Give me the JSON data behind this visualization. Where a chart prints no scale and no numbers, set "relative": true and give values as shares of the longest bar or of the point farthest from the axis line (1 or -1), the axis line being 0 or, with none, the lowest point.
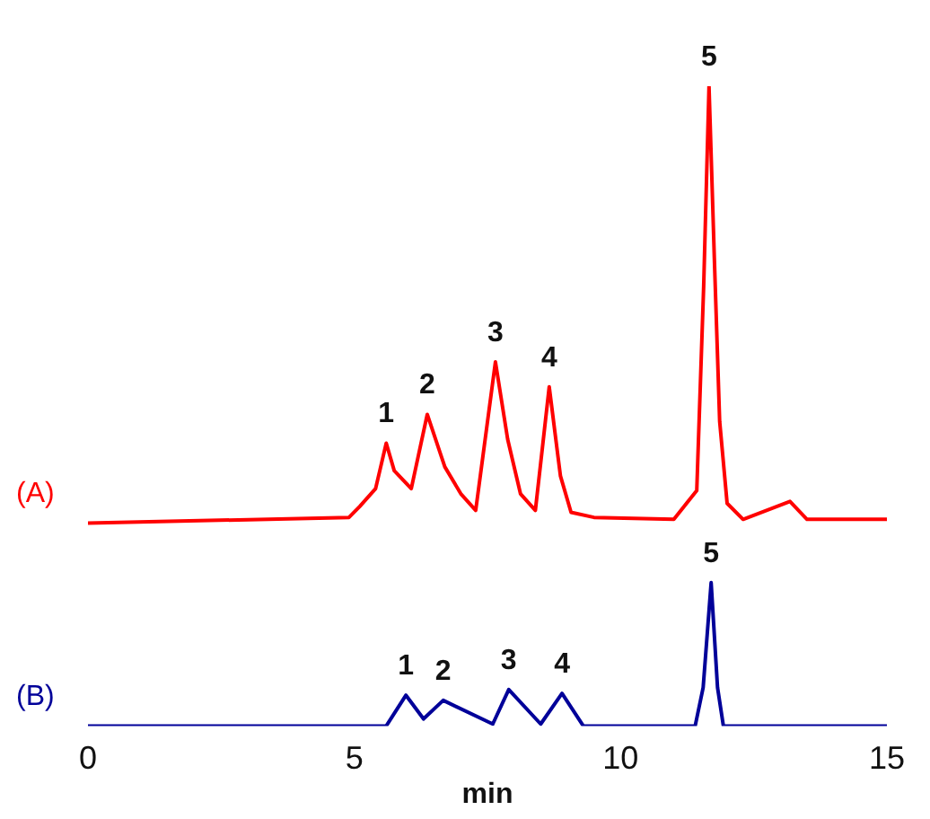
{
  "chart_data": {
    "type": "line",
    "relative": true,
    "xlabel": "min",
    "xlim": [
      0,
      15
    ],
    "xticks": [
      0,
      5,
      10,
      15
    ],
    "grid": false,
    "legend": false,
    "marker": "none",
    "line_style": "solid",
    "series": [
      {
        "name": "(A)",
        "color": "#ff0000",
        "x": [
          0,
          4.9,
          5.1,
          5.4,
          5.6,
          5.75,
          6.07,
          6.37,
          6.7,
          7.0,
          7.28,
          7.65,
          7.88,
          8.12,
          8.4,
          8.66,
          8.87,
          9.07,
          9.5,
          11.0,
          11.43,
          11.56,
          11.66,
          11.76,
          11.86,
          12.0,
          12.3,
          13.18,
          13.5,
          15
        ],
        "values": [
          0.317,
          0.326,
          0.343,
          0.371,
          0.442,
          0.399,
          0.371,
          0.487,
          0.405,
          0.363,
          0.337,
          0.569,
          0.448,
          0.363,
          0.337,
          0.53,
          0.391,
          0.334,
          0.326,
          0.323,
          0.368,
          0.688,
          1,
          0.731,
          0.476,
          0.348,
          0.323,
          0.351,
          0.323,
          0.323
        ]
      },
      {
        "name": "(B)",
        "color": "#000099",
        "x": [
          0,
          5.6,
          5.97,
          6.3,
          6.67,
          7.6,
          7.9,
          8.5,
          8.9,
          9.3,
          11.4,
          11.55,
          11.7,
          11.82,
          11.93,
          15
        ],
        "values": [
          0,
          0,
          0.048,
          0.011,
          0.04,
          0.003,
          0.057,
          0.003,
          0.051,
          0,
          0,
          0.06,
          0.224,
          0.06,
          0,
          0
        ]
      }
    ],
    "annotations": [
      {
        "text": "1",
        "x": 5.6,
        "y": 0.442
      },
      {
        "text": "2",
        "x": 6.37,
        "y": 0.487
      },
      {
        "text": "3",
        "x": 7.65,
        "y": 0.569
      },
      {
        "text": "4",
        "x": 8.66,
        "y": 0.53
      },
      {
        "text": "5",
        "x": 11.66,
        "y": 1
      },
      {
        "text": "1",
        "x": 5.97,
        "y": 0.048
      },
      {
        "text": "2",
        "x": 6.67,
        "y": 0.04
      },
      {
        "text": "3",
        "x": 7.9,
        "y": 0.057
      },
      {
        "text": "4",
        "x": 8.9,
        "y": 0.051
      },
      {
        "text": "5",
        "x": 11.7,
        "y": 0.224
      }
    ]
  }
}
